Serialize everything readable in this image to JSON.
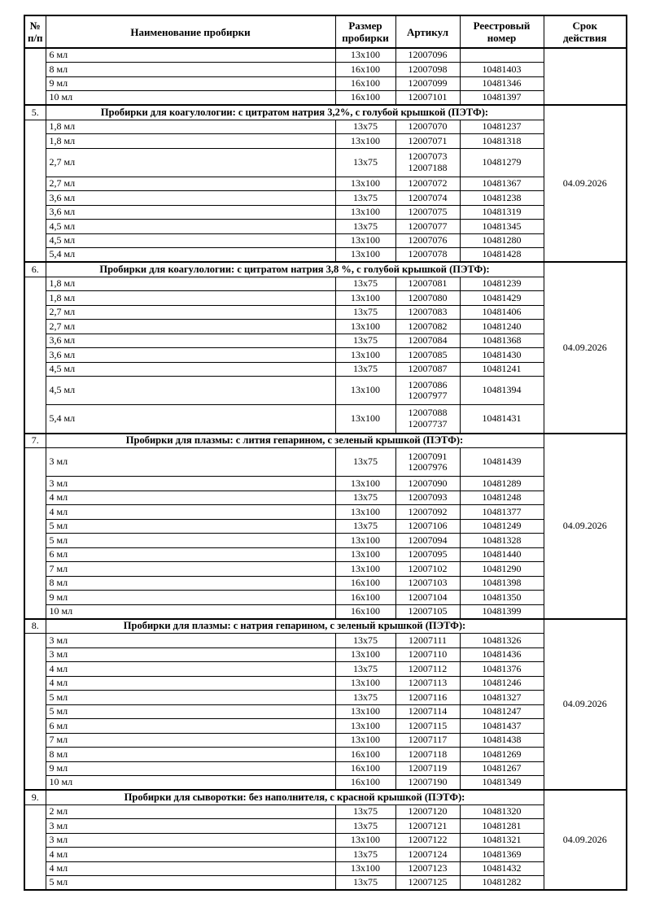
{
  "table": {
    "columns": [
      {
        "label": "№\nп/п"
      },
      {
        "label": "Наименование пробирки"
      },
      {
        "label": "Размер\nпробирки"
      },
      {
        "label": "Артикул"
      },
      {
        "label": "Реестровый\nномер"
      },
      {
        "label": "Срок\nдействия"
      }
    ],
    "sections": [
      {
        "number": "",
        "title": "",
        "validity": "",
        "rows": [
          {
            "name": "6 мл",
            "size": "13x100",
            "articles": [
              "12007096"
            ],
            "reg": ""
          },
          {
            "name": "8 мл",
            "size": "16x100",
            "articles": [
              "12007098"
            ],
            "reg": "10481403"
          },
          {
            "name": "9 мл",
            "size": "16x100",
            "articles": [
              "12007099"
            ],
            "reg": "10481346"
          },
          {
            "name": "10 мл",
            "size": "16x100",
            "articles": [
              "12007101"
            ],
            "reg": "10481397"
          }
        ]
      },
      {
        "number": "5.",
        "title": "Пробирки для коагулологии: с цитратом натрия 3,2%, с голубой крышкой (ПЭТФ):",
        "validity": "04.09.2026",
        "rows": [
          {
            "name": "1,8 мл",
            "size": "13x75",
            "articles": [
              "12007070"
            ],
            "reg": "10481237"
          },
          {
            "name": "1,8 мл",
            "size": "13x100",
            "articles": [
              "12007071"
            ],
            "reg": "10481318"
          },
          {
            "name": "2,7 мл",
            "size": "13x75",
            "articles": [
              "12007073",
              "12007188"
            ],
            "reg": "10481279"
          },
          {
            "name": "2,7 мл",
            "size": "13x100",
            "articles": [
              "12007072"
            ],
            "reg": "10481367"
          },
          {
            "name": "3,6 мл",
            "size": "13x75",
            "articles": [
              "12007074"
            ],
            "reg": "10481238"
          },
          {
            "name": "3,6 мл",
            "size": "13x100",
            "articles": [
              "12007075"
            ],
            "reg": "10481319"
          },
          {
            "name": "4,5 мл",
            "size": "13x75",
            "articles": [
              "12007077"
            ],
            "reg": "10481345"
          },
          {
            "name": "4,5 мл",
            "size": "13x100",
            "articles": [
              "12007076"
            ],
            "reg": "10481280"
          },
          {
            "name": "5,4 мл",
            "size": "13x100",
            "articles": [
              "12007078"
            ],
            "reg": "10481428"
          }
        ]
      },
      {
        "number": "6.",
        "title": "Пробирки для коагулологии: с цитратом натрия 3,8 %, с голубой крышкой (ПЭТФ):",
        "validity": "04.09.2026",
        "rows": [
          {
            "name": "1,8 мл",
            "size": "13x75",
            "articles": [
              "12007081"
            ],
            "reg": "10481239"
          },
          {
            "name": "1,8 мл",
            "size": "13x100",
            "articles": [
              "12007080"
            ],
            "reg": "10481429"
          },
          {
            "name": "2,7 мл",
            "size": "13x75",
            "articles": [
              "12007083"
            ],
            "reg": "10481406"
          },
          {
            "name": "2,7 мл",
            "size": "13x100",
            "articles": [
              "12007082"
            ],
            "reg": "10481240"
          },
          {
            "name": "3,6 мл",
            "size": "13x75",
            "articles": [
              "12007084"
            ],
            "reg": "10481368"
          },
          {
            "name": "3,6 мл",
            "size": "13x100",
            "articles": [
              "12007085"
            ],
            "reg": "10481430"
          },
          {
            "name": "4,5 мл",
            "size": "13x75",
            "articles": [
              "12007087"
            ],
            "reg": "10481241"
          },
          {
            "name": "4,5 мл",
            "size": "13x100",
            "articles": [
              "12007086",
              "12007977"
            ],
            "reg": "10481394"
          },
          {
            "name": "5,4 мл",
            "size": "13x100",
            "articles": [
              "12007088",
              "12007737"
            ],
            "reg": "10481431"
          }
        ]
      },
      {
        "number": "7.",
        "title": "Пробирки для плазмы: с лития гепарином, с зеленый крышкой (ПЭТФ):",
        "validity": "04.09.2026",
        "rows": [
          {
            "name": "3 мл",
            "size": "13x75",
            "articles": [
              "12007091",
              "12007976"
            ],
            "reg": "10481439"
          },
          {
            "name": "3 мл",
            "size": "13x100",
            "articles": [
              "12007090"
            ],
            "reg": "10481289"
          },
          {
            "name": "4 мл",
            "size": "13x75",
            "articles": [
              "12007093"
            ],
            "reg": "10481248"
          },
          {
            "name": "4 мл",
            "size": "13x100",
            "articles": [
              "12007092"
            ],
            "reg": "10481377"
          },
          {
            "name": "5 мл",
            "size": "13x75",
            "articles": [
              "12007106"
            ],
            "reg": "10481249"
          },
          {
            "name": "5 мл",
            "size": "13x100",
            "articles": [
              "12007094"
            ],
            "reg": "10481328"
          },
          {
            "name": "6 мл",
            "size": "13x100",
            "articles": [
              "12007095"
            ],
            "reg": "10481440"
          },
          {
            "name": "7 мл",
            "size": "13x100",
            "articles": [
              "12007102"
            ],
            "reg": "10481290"
          },
          {
            "name": "8 мл",
            "size": "16x100",
            "articles": [
              "12007103"
            ],
            "reg": "10481398"
          },
          {
            "name": "9 мл",
            "size": "16x100",
            "articles": [
              "12007104"
            ],
            "reg": "10481350"
          },
          {
            "name": "10 мл",
            "size": "16x100",
            "articles": [
              "12007105"
            ],
            "reg": "10481399"
          }
        ]
      },
      {
        "number": "8.",
        "title": "Пробирки для плазмы: с натрия гепарином, с зеленый крышкой (ПЭТФ):",
        "validity": "04.09.2026",
        "rows": [
          {
            "name": "3 мл",
            "size": "13x75",
            "articles": [
              "12007111"
            ],
            "reg": "10481326"
          },
          {
            "name": "3 мл",
            "size": "13x100",
            "articles": [
              "12007110"
            ],
            "reg": "10481436"
          },
          {
            "name": "4 мл",
            "size": "13x75",
            "articles": [
              "12007112"
            ],
            "reg": "10481376"
          },
          {
            "name": "4 мл",
            "size": "13x100",
            "articles": [
              "12007113"
            ],
            "reg": "10481246"
          },
          {
            "name": "5 мл",
            "size": "13x75",
            "articles": [
              "12007116"
            ],
            "reg": "10481327"
          },
          {
            "name": "5 мл",
            "size": "13x100",
            "articles": [
              "12007114"
            ],
            "reg": "10481247"
          },
          {
            "name": "6 мл",
            "size": "13x100",
            "articles": [
              "12007115"
            ],
            "reg": "10481437"
          },
          {
            "name": "7 мл",
            "size": "13x100",
            "articles": [
              "12007117"
            ],
            "reg": "10481438"
          },
          {
            "name": "8 мл",
            "size": "16x100",
            "articles": [
              "12007118"
            ],
            "reg": "10481269"
          },
          {
            "name": "9 мл",
            "size": "16x100",
            "articles": [
              "12007119"
            ],
            "reg": "10481267"
          },
          {
            "name": "10 мл",
            "size": "16x100",
            "articles": [
              "12007190"
            ],
            "reg": "10481349"
          }
        ]
      },
      {
        "number": "9.",
        "title": "Пробирки для сыворотки: без наполнителя, с красной крышкой (ПЭТФ):",
        "validity": "04.09.2026",
        "rows": [
          {
            "name": "2 мл",
            "size": "13x75",
            "articles": [
              "12007120"
            ],
            "reg": "10481320"
          },
          {
            "name": "3 мл",
            "size": "13x75",
            "articles": [
              "12007121"
            ],
            "reg": "10481281"
          },
          {
            "name": "3 мл",
            "size": "13x100",
            "articles": [
              "12007122"
            ],
            "reg": "10481321"
          },
          {
            "name": "4 мл",
            "size": "13x75",
            "articles": [
              "12007124"
            ],
            "reg": "10481369"
          },
          {
            "name": "4 мл",
            "size": "13x100",
            "articles": [
              "12007123"
            ],
            "reg": "10481432"
          },
          {
            "name": "5 мл",
            "size": "13x75",
            "articles": [
              "12007125"
            ],
            "reg": "10481282"
          }
        ]
      }
    ]
  }
}
